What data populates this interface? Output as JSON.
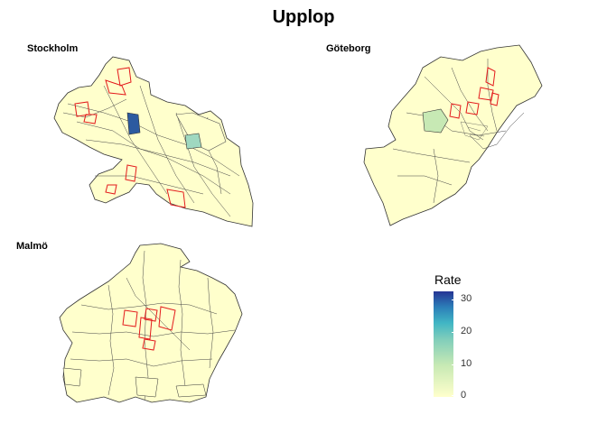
{
  "title": "Upplop",
  "panels": [
    {
      "name": "Stockholm"
    },
    {
      "name": "Göteborg"
    },
    {
      "name": "Malmö"
    }
  ],
  "legend": {
    "title": "Rate",
    "ticks": [
      "30",
      "20",
      "10",
      "0"
    ],
    "range": [
      0,
      32
    ],
    "low_color": "#ffffcc",
    "high_color": "#253494"
  },
  "colors": {
    "base_fill": "#ffffcc",
    "border": "#333333",
    "highlight_outline": "#e31a1c",
    "high_rate_fill": "#2c5aa0",
    "mid_rate_fill": "#9fd8c0"
  }
}
